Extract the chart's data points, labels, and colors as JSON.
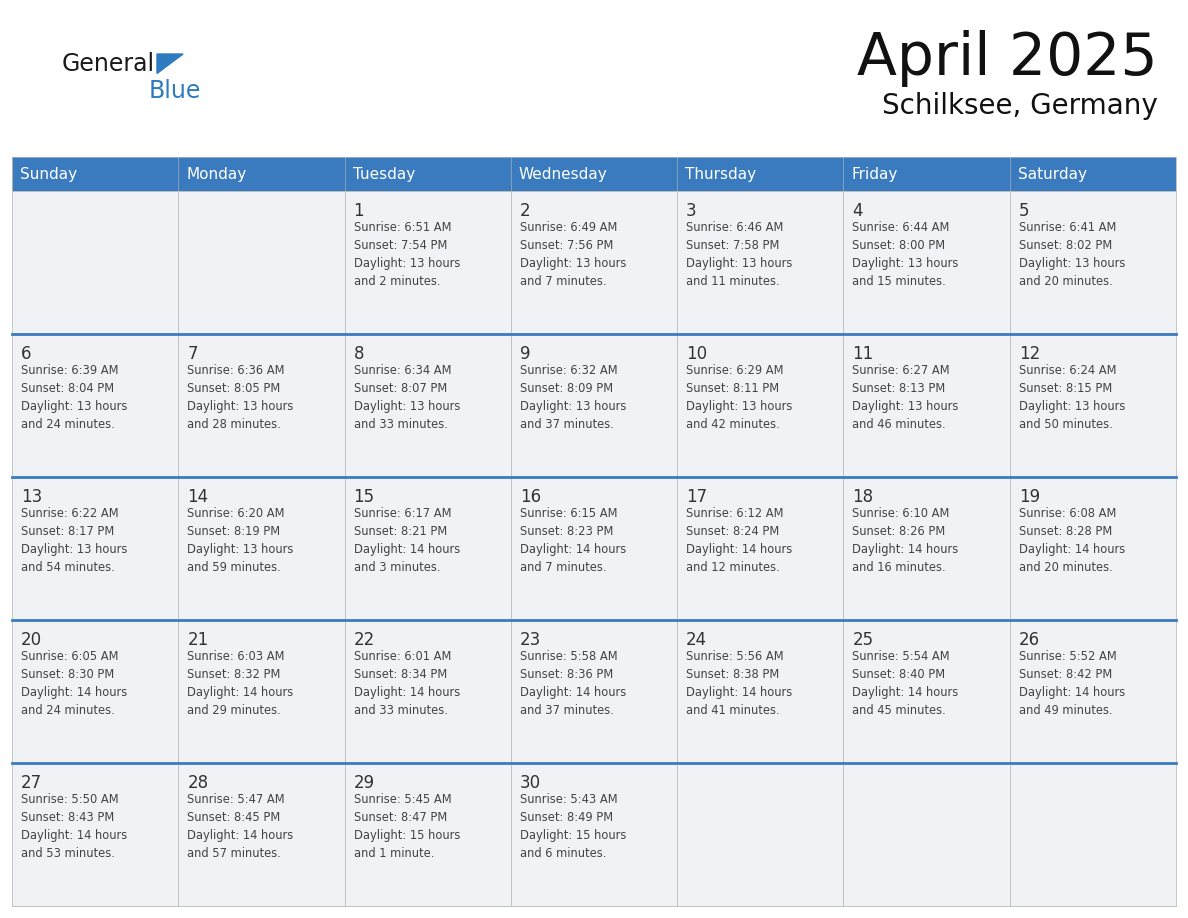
{
  "title": "April 2025",
  "subtitle": "Schilksee, Germany",
  "days_of_week": [
    "Sunday",
    "Monday",
    "Tuesday",
    "Wednesday",
    "Thursday",
    "Friday",
    "Saturday"
  ],
  "header_bg": "#3a7bbf",
  "header_text": "#ffffff",
  "divider_color": "#3a7bbf",
  "border_color": "#bbbbbb",
  "cell_bg": "#f0f2f5",
  "text_color": "#333333",
  "logo_general_color": "#1a1a1a",
  "logo_blue_color": "#2e7bbf",
  "weeks": [
    [
      {
        "day": null,
        "info": null
      },
      {
        "day": null,
        "info": null
      },
      {
        "day": 1,
        "info": "Sunrise: 6:51 AM\nSunset: 7:54 PM\nDaylight: 13 hours\nand 2 minutes."
      },
      {
        "day": 2,
        "info": "Sunrise: 6:49 AM\nSunset: 7:56 PM\nDaylight: 13 hours\nand 7 minutes."
      },
      {
        "day": 3,
        "info": "Sunrise: 6:46 AM\nSunset: 7:58 PM\nDaylight: 13 hours\nand 11 minutes."
      },
      {
        "day": 4,
        "info": "Sunrise: 6:44 AM\nSunset: 8:00 PM\nDaylight: 13 hours\nand 15 minutes."
      },
      {
        "day": 5,
        "info": "Sunrise: 6:41 AM\nSunset: 8:02 PM\nDaylight: 13 hours\nand 20 minutes."
      }
    ],
    [
      {
        "day": 6,
        "info": "Sunrise: 6:39 AM\nSunset: 8:04 PM\nDaylight: 13 hours\nand 24 minutes."
      },
      {
        "day": 7,
        "info": "Sunrise: 6:36 AM\nSunset: 8:05 PM\nDaylight: 13 hours\nand 28 minutes."
      },
      {
        "day": 8,
        "info": "Sunrise: 6:34 AM\nSunset: 8:07 PM\nDaylight: 13 hours\nand 33 minutes."
      },
      {
        "day": 9,
        "info": "Sunrise: 6:32 AM\nSunset: 8:09 PM\nDaylight: 13 hours\nand 37 minutes."
      },
      {
        "day": 10,
        "info": "Sunrise: 6:29 AM\nSunset: 8:11 PM\nDaylight: 13 hours\nand 42 minutes."
      },
      {
        "day": 11,
        "info": "Sunrise: 6:27 AM\nSunset: 8:13 PM\nDaylight: 13 hours\nand 46 minutes."
      },
      {
        "day": 12,
        "info": "Sunrise: 6:24 AM\nSunset: 8:15 PM\nDaylight: 13 hours\nand 50 minutes."
      }
    ],
    [
      {
        "day": 13,
        "info": "Sunrise: 6:22 AM\nSunset: 8:17 PM\nDaylight: 13 hours\nand 54 minutes."
      },
      {
        "day": 14,
        "info": "Sunrise: 6:20 AM\nSunset: 8:19 PM\nDaylight: 13 hours\nand 59 minutes."
      },
      {
        "day": 15,
        "info": "Sunrise: 6:17 AM\nSunset: 8:21 PM\nDaylight: 14 hours\nand 3 minutes."
      },
      {
        "day": 16,
        "info": "Sunrise: 6:15 AM\nSunset: 8:23 PM\nDaylight: 14 hours\nand 7 minutes."
      },
      {
        "day": 17,
        "info": "Sunrise: 6:12 AM\nSunset: 8:24 PM\nDaylight: 14 hours\nand 12 minutes."
      },
      {
        "day": 18,
        "info": "Sunrise: 6:10 AM\nSunset: 8:26 PM\nDaylight: 14 hours\nand 16 minutes."
      },
      {
        "day": 19,
        "info": "Sunrise: 6:08 AM\nSunset: 8:28 PM\nDaylight: 14 hours\nand 20 minutes."
      }
    ],
    [
      {
        "day": 20,
        "info": "Sunrise: 6:05 AM\nSunset: 8:30 PM\nDaylight: 14 hours\nand 24 minutes."
      },
      {
        "day": 21,
        "info": "Sunrise: 6:03 AM\nSunset: 8:32 PM\nDaylight: 14 hours\nand 29 minutes."
      },
      {
        "day": 22,
        "info": "Sunrise: 6:01 AM\nSunset: 8:34 PM\nDaylight: 14 hours\nand 33 minutes."
      },
      {
        "day": 23,
        "info": "Sunrise: 5:58 AM\nSunset: 8:36 PM\nDaylight: 14 hours\nand 37 minutes."
      },
      {
        "day": 24,
        "info": "Sunrise: 5:56 AM\nSunset: 8:38 PM\nDaylight: 14 hours\nand 41 minutes."
      },
      {
        "day": 25,
        "info": "Sunrise: 5:54 AM\nSunset: 8:40 PM\nDaylight: 14 hours\nand 45 minutes."
      },
      {
        "day": 26,
        "info": "Sunrise: 5:52 AM\nSunset: 8:42 PM\nDaylight: 14 hours\nand 49 minutes."
      }
    ],
    [
      {
        "day": 27,
        "info": "Sunrise: 5:50 AM\nSunset: 8:43 PM\nDaylight: 14 hours\nand 53 minutes."
      },
      {
        "day": 28,
        "info": "Sunrise: 5:47 AM\nSunset: 8:45 PM\nDaylight: 14 hours\nand 57 minutes."
      },
      {
        "day": 29,
        "info": "Sunrise: 5:45 AM\nSunset: 8:47 PM\nDaylight: 15 hours\nand 1 minute."
      },
      {
        "day": 30,
        "info": "Sunrise: 5:43 AM\nSunset: 8:49 PM\nDaylight: 15 hours\nand 6 minutes."
      },
      {
        "day": null,
        "info": null
      },
      {
        "day": null,
        "info": null
      },
      {
        "day": null,
        "info": null
      }
    ]
  ]
}
